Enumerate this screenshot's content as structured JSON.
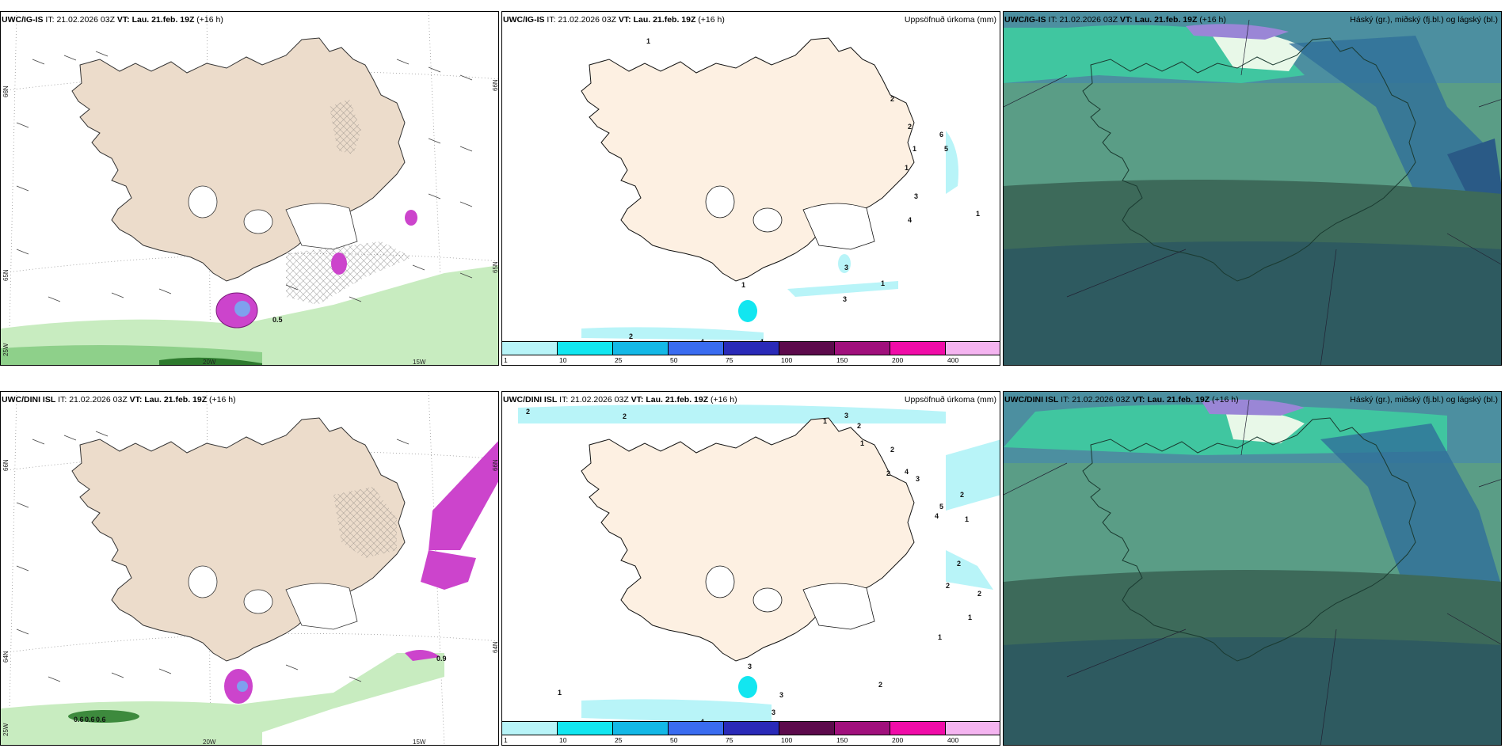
{
  "panels": [
    {
      "model": "UWC/IG-IS",
      "it_label": "IT:",
      "it": "21.02.2026 03Z",
      "vt_label": "VT:",
      "vt": "Lau. 21.feb. 19Z",
      "lead": "(+16 h)",
      "right": ""
    },
    {
      "model": "UWC/IG-IS",
      "it_label": "IT:",
      "it": "21.02.2026 03Z",
      "vt_label": "VT:",
      "vt": "Lau. 21.feb. 19Z",
      "lead": "(+16 h)",
      "right": "Uppsöfnuð úrkoma (mm)"
    },
    {
      "model": "UWC/IG-IS",
      "it_label": "IT:",
      "it": "21.02.2026 03Z",
      "vt_label": "VT:",
      "vt": "Lau. 21.feb. 19Z",
      "lead": "(+16 h)",
      "right": "Háský (gr.), miðský (fj.bl.) og lágský (bl.)"
    },
    {
      "model": "UWC/DINI ISL",
      "it_label": "IT:",
      "it": "21.02.2026 03Z",
      "vt_label": "VT:",
      "vt": "Lau. 21.feb. 19Z",
      "lead": "(+16 h)",
      "right": ""
    },
    {
      "model": "UWC/DINI ISL",
      "it_label": "IT:",
      "it": "21.02.2026 03Z",
      "vt_label": "VT:",
      "vt": "Lau. 21.feb. 19Z",
      "lead": "(+16 h)",
      "right": "Uppsöfnuð úrkoma (mm)"
    },
    {
      "model": "UWC/DINI ISL",
      "it_label": "IT:",
      "it": "21.02.2026 03Z",
      "vt_label": "VT:",
      "vt": "Lau. 21.feb. 19Z",
      "lead": "(+16 h)",
      "right": "Háský (gr.), miðský (fj.bl.) og lágský (bl.)"
    }
  ],
  "axes": {
    "lat_66": "66N",
    "lat_65": "65N",
    "lat_64": "64N",
    "lon_25": "25W",
    "lon_20": "20W",
    "lon_15": "15W"
  },
  "legend": {
    "ticks": [
      "1",
      "10",
      "25",
      "50",
      "75",
      "100",
      "150",
      "200",
      "400"
    ],
    "colors": [
      "#b8f4f8",
      "#12e6f0",
      "#14b8e6",
      "#3a6cf0",
      "#2a2ab8",
      "#5c0a4c",
      "#a0107c",
      "#f00ca8",
      "#f4b4f0"
    ]
  },
  "annotations": {
    "p1": [
      "0.5"
    ],
    "p4": [
      "0.9",
      "0.6",
      "0.6",
      "0.6"
    ],
    "p2": [
      "1",
      "2",
      "2",
      "6",
      "5",
      "1",
      "1",
      "3",
      "4",
      "1",
      "3",
      "1",
      "1",
      "3",
      "2",
      "4",
      "4"
    ],
    "p5": [
      "2",
      "2",
      "1",
      "3",
      "2",
      "1",
      "2",
      "4",
      "2",
      "3",
      "5",
      "2",
      "4",
      "1",
      "2",
      "2",
      "2",
      "1",
      "1",
      "3",
      "1",
      "2",
      "3",
      "4",
      "3"
    ]
  }
}
